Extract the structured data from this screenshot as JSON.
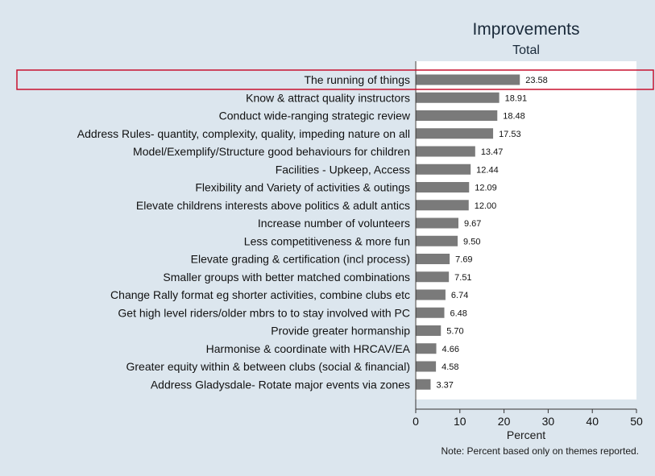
{
  "chart_data": {
    "type": "bar",
    "orientation": "horizontal",
    "title": "Improvements",
    "subtitle": "Total",
    "xlabel": "Percent",
    "ylabel": "",
    "xlim": [
      0,
      50
    ],
    "xticks": [
      0,
      10,
      20,
      30,
      40,
      50
    ],
    "grid": false,
    "note": "Note: Percent based only on themes reported.",
    "bar_color": "#7a7a7a",
    "highlight_color": "#c8102e",
    "highlighted_category": "The running of things",
    "categories": [
      "The running of things",
      "Know & attract quality instructors",
      "Conduct wide-ranging strategic review",
      "Address Rules- quantity, complexity, quality, impeding nature on all",
      "Model/Exemplify/Structure good behaviours for children",
      "Facilities - Upkeep, Access",
      "Flexibility and Variety of activities & outings",
      "Elevate childrens interests above politics & adult antics",
      "Increase number of volunteers",
      "Less competitiveness & more fun",
      "Elevate grading & certification (incl process)",
      "Smaller groups with better matched combinations",
      "Change Rally format eg shorter activities, combine clubs etc",
      "Get high level riders/older mbrs to to stay involved with PC",
      "Provide greater hormanship",
      "Harmonise & coordinate with HRCAV/EA",
      "Greater equity within & between clubs (social & financial)",
      "Address Gladysdale- Rotate major events via zones"
    ],
    "values": [
      23.58,
      18.91,
      18.48,
      17.53,
      13.47,
      12.44,
      12.09,
      12.0,
      9.67,
      9.5,
      7.69,
      7.51,
      6.74,
      6.48,
      5.7,
      4.66,
      4.58,
      3.37
    ],
    "value_labels": [
      "23.58",
      "18.91",
      "18.48",
      "17.53",
      "13.47",
      "12.44",
      "12.09",
      "12.00",
      "9.67",
      "9.50",
      "7.69",
      "7.51",
      "6.74",
      "6.48",
      "5.70",
      "4.66",
      "4.58",
      "3.37"
    ]
  }
}
